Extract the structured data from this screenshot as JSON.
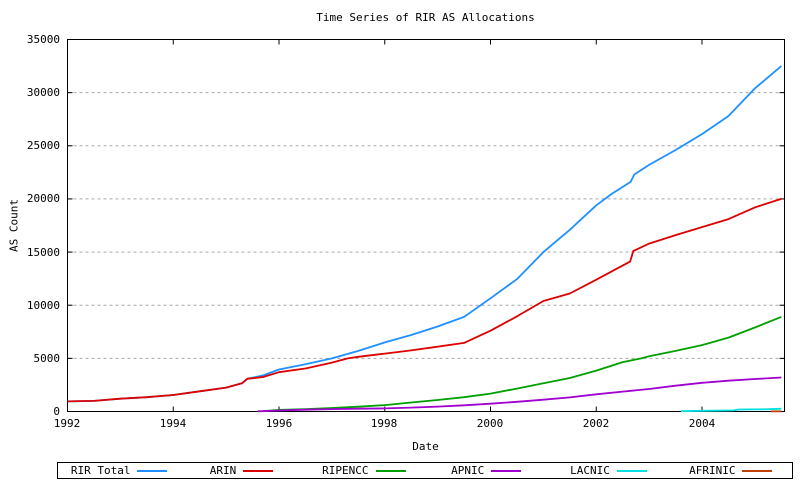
{
  "title": "Time Series of RIR AS Allocations",
  "x_axis": {
    "label": "Date",
    "tick_labels": [
      "1992",
      "1994",
      "1996",
      "1998",
      "2000",
      "2002",
      "2004"
    ]
  },
  "y_axis": {
    "label": "AS Count",
    "tick_labels": [
      "0",
      "5000",
      "10000",
      "15000",
      "20000",
      "25000",
      "30000",
      "35000"
    ]
  },
  "legend": {
    "position": "bottom",
    "entries": [
      {
        "label": "RIR Total",
        "color": "#1e90ff"
      },
      {
        "label": "ARIN",
        "color": "#dd0000"
      },
      {
        "label": "RIPENCC",
        "color": "#00a000"
      },
      {
        "label": "APNIC",
        "color": "#a000d0"
      },
      {
        "label": "LACNIC",
        "color": "#00e0e0"
      },
      {
        "label": "AFRINIC",
        "color": "#c04000"
      }
    ]
  },
  "chart_data": {
    "type": "line",
    "title": "Time Series of RIR AS Allocations",
    "xlabel": "Date",
    "ylabel": "AS Count",
    "xlim": [
      1992,
      2005.56
    ],
    "ylim": [
      0,
      35000
    ],
    "xticks": [
      1992,
      1994,
      1996,
      1998,
      2000,
      2002,
      2004
    ],
    "yticks": [
      0,
      5000,
      10000,
      15000,
      20000,
      25000,
      30000,
      35000
    ],
    "grid": "horizontal-dashed",
    "grid_color": "#a8a8a8",
    "background": "#ffffff",
    "border_color": "#000000",
    "series": [
      {
        "name": "RIR Total",
        "color": "#1e90ff",
        "points": [
          [
            1992.0,
            950
          ],
          [
            1992.5,
            1000
          ],
          [
            1993.0,
            1200
          ],
          [
            1993.5,
            1350
          ],
          [
            1994.0,
            1550
          ],
          [
            1994.5,
            1900
          ],
          [
            1995.0,
            2250
          ],
          [
            1995.3,
            2650
          ],
          [
            1995.4,
            3080
          ],
          [
            1995.7,
            3400
          ],
          [
            1996.0,
            3950
          ],
          [
            1996.5,
            4450
          ],
          [
            1997.0,
            5000
          ],
          [
            1997.5,
            5700
          ],
          [
            1998.0,
            6500
          ],
          [
            1998.5,
            7200
          ],
          [
            1999.0,
            8000
          ],
          [
            1999.5,
            8900
          ],
          [
            2000.0,
            10650
          ],
          [
            2000.5,
            12450
          ],
          [
            2001.0,
            15000
          ],
          [
            2001.5,
            17100
          ],
          [
            2002.0,
            19400
          ],
          [
            2002.3,
            20500
          ],
          [
            2002.65,
            21600
          ],
          [
            2002.72,
            22300
          ],
          [
            2003.0,
            23200
          ],
          [
            2003.5,
            24600
          ],
          [
            2004.0,
            26100
          ],
          [
            2004.5,
            27800
          ],
          [
            2005.0,
            30400
          ],
          [
            2005.5,
            32500
          ]
        ]
      },
      {
        "name": "ARIN",
        "color": "#dd0000",
        "points": [
          [
            1992.0,
            950
          ],
          [
            1992.5,
            1000
          ],
          [
            1993.0,
            1200
          ],
          [
            1993.5,
            1350
          ],
          [
            1994.0,
            1550
          ],
          [
            1994.5,
            1900
          ],
          [
            1995.0,
            2250
          ],
          [
            1995.3,
            2650
          ],
          [
            1995.4,
            3080
          ],
          [
            1995.7,
            3250
          ],
          [
            1996.0,
            3700
          ],
          [
            1996.5,
            4050
          ],
          [
            1997.0,
            4600
          ],
          [
            1997.3,
            5000
          ],
          [
            1997.5,
            5150
          ],
          [
            1998.0,
            5450
          ],
          [
            1998.5,
            5750
          ],
          [
            1999.0,
            6100
          ],
          [
            1999.5,
            6450
          ],
          [
            2000.0,
            7600
          ],
          [
            2000.5,
            8950
          ],
          [
            2001.0,
            10400
          ],
          [
            2001.5,
            11100
          ],
          [
            2002.0,
            12400
          ],
          [
            2002.3,
            13200
          ],
          [
            2002.64,
            14100
          ],
          [
            2002.7,
            15100
          ],
          [
            2003.0,
            15800
          ],
          [
            2003.5,
            16600
          ],
          [
            2004.0,
            17350
          ],
          [
            2004.5,
            18100
          ],
          [
            2005.0,
            19200
          ],
          [
            2005.5,
            20000
          ]
        ]
      },
      {
        "name": "RIPENCC",
        "color": "#00a000",
        "points": [
          [
            1995.7,
            30
          ],
          [
            1996.0,
            150
          ],
          [
            1996.5,
            220
          ],
          [
            1997.0,
            330
          ],
          [
            1997.5,
            450
          ],
          [
            1998.0,
            600
          ],
          [
            1998.5,
            850
          ],
          [
            1999.0,
            1080
          ],
          [
            1999.5,
            1350
          ],
          [
            2000.0,
            1680
          ],
          [
            2000.5,
            2150
          ],
          [
            2001.0,
            2650
          ],
          [
            2001.5,
            3150
          ],
          [
            2002.0,
            3850
          ],
          [
            2002.5,
            4650
          ],
          [
            2002.85,
            5000
          ],
          [
            2003.0,
            5200
          ],
          [
            2003.5,
            5700
          ],
          [
            2004.0,
            6250
          ],
          [
            2004.5,
            6950
          ],
          [
            2005.0,
            7900
          ],
          [
            2005.5,
            8900
          ]
        ]
      },
      {
        "name": "APNIC",
        "color": "#a000d0",
        "points": [
          [
            1995.6,
            20
          ],
          [
            1996.0,
            90
          ],
          [
            1996.5,
            170
          ],
          [
            1997.0,
            230
          ],
          [
            1997.5,
            260
          ],
          [
            1998.0,
            290
          ],
          [
            1998.5,
            370
          ],
          [
            1999.0,
            460
          ],
          [
            1999.5,
            580
          ],
          [
            2000.0,
            730
          ],
          [
            2000.5,
            910
          ],
          [
            2001.0,
            1110
          ],
          [
            2001.5,
            1330
          ],
          [
            2002.0,
            1620
          ],
          [
            2002.5,
            1870
          ],
          [
            2003.0,
            2120
          ],
          [
            2003.5,
            2430
          ],
          [
            2004.0,
            2700
          ],
          [
            2004.5,
            2900
          ],
          [
            2005.0,
            3060
          ],
          [
            2005.5,
            3200
          ]
        ]
      },
      {
        "name": "LACNIC",
        "color": "#00e0e0",
        "points": [
          [
            2003.6,
            30
          ],
          [
            2004.0,
            70
          ],
          [
            2004.6,
            100
          ],
          [
            2004.7,
            190
          ],
          [
            2005.2,
            210
          ],
          [
            2005.5,
            260
          ]
        ]
      },
      {
        "name": "AFRINIC",
        "color": "#c04000",
        "points": [
          [
            2005.3,
            5
          ],
          [
            2005.5,
            20
          ]
        ]
      }
    ]
  }
}
